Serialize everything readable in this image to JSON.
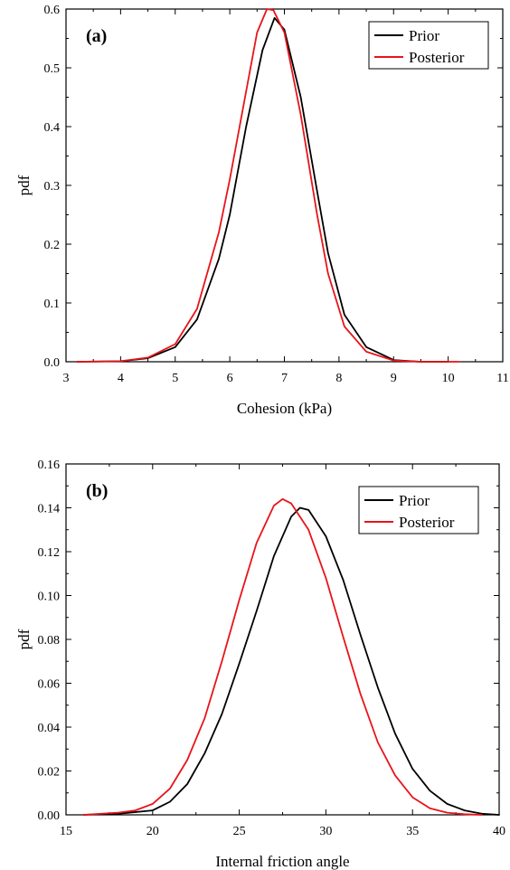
{
  "colors": {
    "prior": "#000000",
    "posterior": "#e8141a",
    "axis": "#000000"
  },
  "chart_data": [
    {
      "type": "line",
      "panel_label": "(a)",
      "xlabel": "Cohesion (kPa)",
      "ylabel": "pdf",
      "xlim": [
        3,
        11
      ],
      "ylim": [
        0,
        0.6
      ],
      "xticks": [
        "3",
        "4",
        "5",
        "6",
        "7",
        "8",
        "9",
        "10",
        "11"
      ],
      "yticks": [
        "0.0",
        "0.1",
        "0.2",
        "0.3",
        "0.4",
        "0.5",
        "0.6"
      ],
      "grid": false,
      "legend_position": "top-right",
      "series": [
        {
          "name": "Prior",
          "color": "#000000",
          "x": [
            3.2,
            4.0,
            4.5,
            5.0,
            5.4,
            5.8,
            6.0,
            6.3,
            6.6,
            6.82,
            7.0,
            7.3,
            7.6,
            7.8,
            8.1,
            8.5,
            9.0,
            9.5,
            10.0
          ],
          "y": [
            0.0,
            0.001,
            0.006,
            0.025,
            0.072,
            0.175,
            0.25,
            0.4,
            0.53,
            0.585,
            0.565,
            0.45,
            0.29,
            0.185,
            0.08,
            0.025,
            0.003,
            0.0,
            0.0
          ]
        },
        {
          "name": "Posterior",
          "color": "#e8141a",
          "x": [
            3.2,
            4.0,
            4.5,
            5.0,
            5.4,
            5.8,
            6.0,
            6.3,
            6.5,
            6.68,
            6.8,
            7.0,
            7.3,
            7.6,
            7.8,
            8.1,
            8.5,
            9.0,
            9.5,
            10.2
          ],
          "y": [
            0.0,
            0.001,
            0.007,
            0.03,
            0.09,
            0.22,
            0.31,
            0.46,
            0.56,
            0.6,
            0.598,
            0.56,
            0.42,
            0.25,
            0.15,
            0.06,
            0.017,
            0.002,
            0.0,
            0.0
          ]
        }
      ]
    },
    {
      "type": "line",
      "panel_label": "(b)",
      "xlabel": "Internal friction angle",
      "ylabel": "pdf",
      "xlim": [
        15,
        40
      ],
      "ylim": [
        0,
        0.16
      ],
      "xticks": [
        "15",
        "20",
        "25",
        "30",
        "35",
        "40"
      ],
      "yticks": [
        "0.00",
        "0.02",
        "0.04",
        "0.06",
        "0.08",
        "0.10",
        "0.12",
        "0.14",
        "0.16"
      ],
      "grid": false,
      "legend_position": "top-right",
      "series": [
        {
          "name": "Prior",
          "color": "#000000",
          "x": [
            16,
            18,
            20,
            21,
            22,
            23,
            24,
            25,
            26,
            27,
            28,
            28.5,
            29,
            30,
            31,
            32,
            33,
            34,
            35,
            36,
            37,
            38,
            39,
            40
          ],
          "y": [
            0.0,
            0.0005,
            0.002,
            0.006,
            0.014,
            0.028,
            0.046,
            0.069,
            0.093,
            0.118,
            0.136,
            0.14,
            0.139,
            0.127,
            0.107,
            0.082,
            0.058,
            0.037,
            0.021,
            0.011,
            0.005,
            0.002,
            0.0005,
            0.0
          ]
        },
        {
          "name": "Posterior",
          "color": "#e8141a",
          "x": [
            16,
            18,
            19,
            20,
            21,
            22,
            23,
            24,
            25,
            26,
            27,
            27.5,
            28,
            29,
            30,
            31,
            32,
            33,
            34,
            35,
            36,
            37,
            38,
            39
          ],
          "y": [
            0.0,
            0.001,
            0.002,
            0.005,
            0.012,
            0.025,
            0.044,
            0.07,
            0.098,
            0.124,
            0.141,
            0.144,
            0.142,
            0.13,
            0.108,
            0.081,
            0.055,
            0.033,
            0.018,
            0.008,
            0.003,
            0.001,
            0.0003,
            0.0
          ]
        }
      ]
    }
  ]
}
